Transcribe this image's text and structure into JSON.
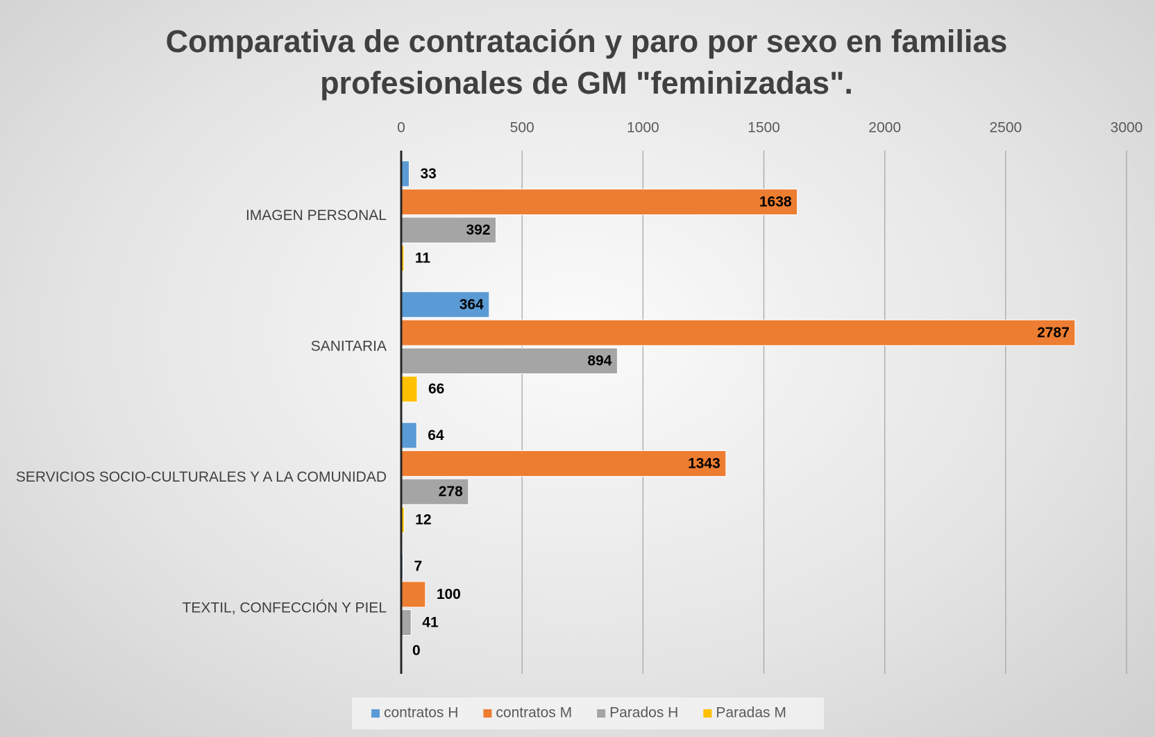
{
  "chart_data": {
    "type": "bar",
    "orientation": "horizontal",
    "title": "Comparativa de contratación y paro por sexo en familias profesionales de GM \"feminizadas\".",
    "categories": [
      "IMAGEN PERSONAL",
      "SANITARIA",
      "SERVICIOS SOCIO-CULTURALES Y A LA COMUNIDAD",
      "TEXTIL, CONFECCIÓN Y PIEL"
    ],
    "series": [
      {
        "name": "contratos H",
        "color": "#5b9bd5",
        "values": [
          33,
          364,
          64,
          7
        ]
      },
      {
        "name": "contratos M",
        "color": "#ed7d31",
        "values": [
          1638,
          2787,
          1343,
          100
        ]
      },
      {
        "name": "Parados H",
        "color": "#a5a5a5",
        "values": [
          392,
          894,
          278,
          41
        ]
      },
      {
        "name": "Paradas M",
        "color": "#ffc000",
        "values": [
          11,
          66,
          12,
          0
        ]
      }
    ],
    "xlim": [
      0,
      3000
    ],
    "xticks": [
      0,
      500,
      1000,
      1500,
      2000,
      2500,
      3000
    ],
    "grid": true,
    "legend": "bottom"
  }
}
